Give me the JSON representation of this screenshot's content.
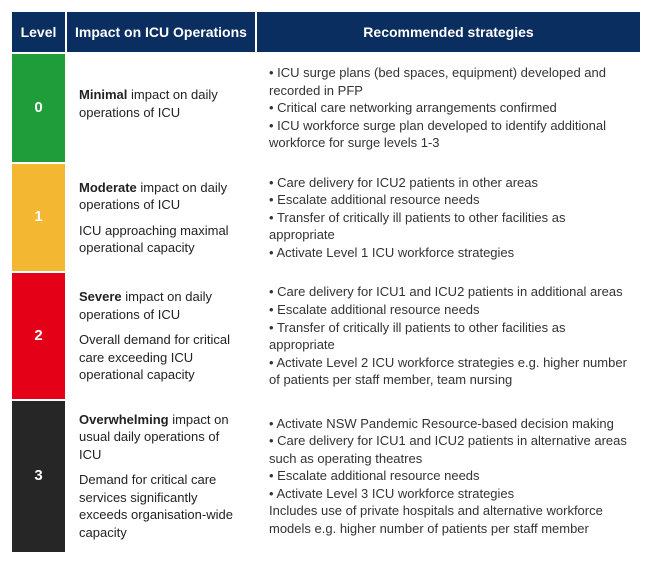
{
  "header": {
    "level": "Level",
    "impact": "Impact on ICU Operations",
    "strategies": "Recommended strategies"
  },
  "rows": [
    {
      "level": "0",
      "level_bg": "#1f9d3a",
      "impact_word": "Minimal",
      "impact_rest": " impact on daily operations of ICU",
      "impact_extra": "",
      "strategies": [
        "ICU surge plans (bed spaces, equipment) developed and recorded in PFP",
        "Critical care networking arrangements confirmed",
        "ICU workforce surge plan developed to identify additional workforce for surge levels 1-3"
      ],
      "note": ""
    },
    {
      "level": "1",
      "level_bg": "#f4b731",
      "impact_word": "Moderate",
      "impact_rest": " impact on daily operations of ICU",
      "impact_extra": "ICU approaching maximal operational capacity",
      "strategies": [
        "Care delivery for ICU2 patients in other areas",
        "Escalate additional resource needs",
        "Transfer of critically ill patients to other facilities as appropriate",
        "Activate Level 1 ICU workforce strategies"
      ],
      "note": ""
    },
    {
      "level": "2",
      "level_bg": "#e40016",
      "impact_word": "Severe",
      "impact_rest": " impact on daily operations of ICU",
      "impact_extra": "Overall demand for critical care exceeding ICU operational capacity",
      "strategies": [
        "Care delivery for ICU1 and ICU2 patients in additional areas",
        "Escalate additional resource needs",
        "Transfer of critically ill patients to other facilities as appropriate",
        "Activate Level 2 ICU workforce strategies e.g. higher number of patients per staff member, team nursing"
      ],
      "note": ""
    },
    {
      "level": "3",
      "level_bg": "#262626",
      "impact_word": "Overwhelming",
      "impact_rest": " impact on usual daily operations of ICU",
      "impact_extra": "Demand for critical care services significantly exceeds organisation-wide capacity",
      "strategies": [
        "Activate NSW Pandemic Resource-based decision making",
        "Care delivery for ICU1 and ICU2 patients in alternative areas such as operating theatres",
        "Escalate additional resource needs",
        "Activate Level 3 ICU workforce strategies"
      ],
      "note": "Includes use of private hospitals and alternative workforce models e.g. higher number of patients per staff member"
    }
  ]
}
